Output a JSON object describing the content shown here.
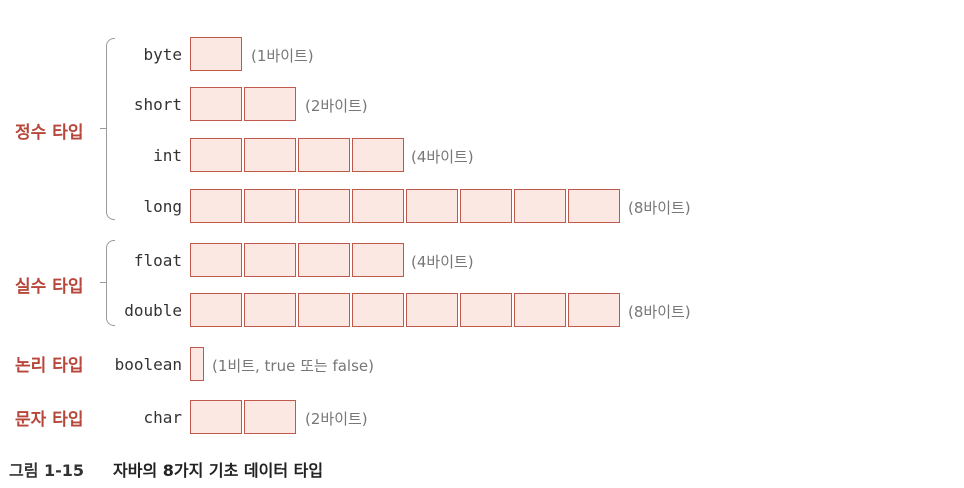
{
  "groups": {
    "integer": "정수 타입",
    "real": "실수 타입",
    "logical": "논리 타입",
    "character": "문자 타입"
  },
  "types": [
    {
      "name": "byte",
      "bytes": 1,
      "note": "(1바이트)"
    },
    {
      "name": "short",
      "bytes": 2,
      "note": "(2바이트)"
    },
    {
      "name": "int",
      "bytes": 4,
      "note": "(4바이트)"
    },
    {
      "name": "long",
      "bytes": 8,
      "note": "(8바이트)"
    },
    {
      "name": "float",
      "bytes": 4,
      "note": "(4바이트)"
    },
    {
      "name": "double",
      "bytes": 8,
      "note": "(8바이트)"
    },
    {
      "name": "boolean",
      "bytes": 0.125,
      "note": "(1비트, true 또는 false)"
    },
    {
      "name": "char",
      "bytes": 2,
      "note": "(2바이트)"
    }
  ],
  "caption": {
    "label": "그림 1-15",
    "text": "자바의 8가지 기초 데이터 타입"
  },
  "colors": {
    "accent": "#b8473b",
    "cell_fill": "#fbe8e3",
    "cell_border": "#c0584b"
  }
}
